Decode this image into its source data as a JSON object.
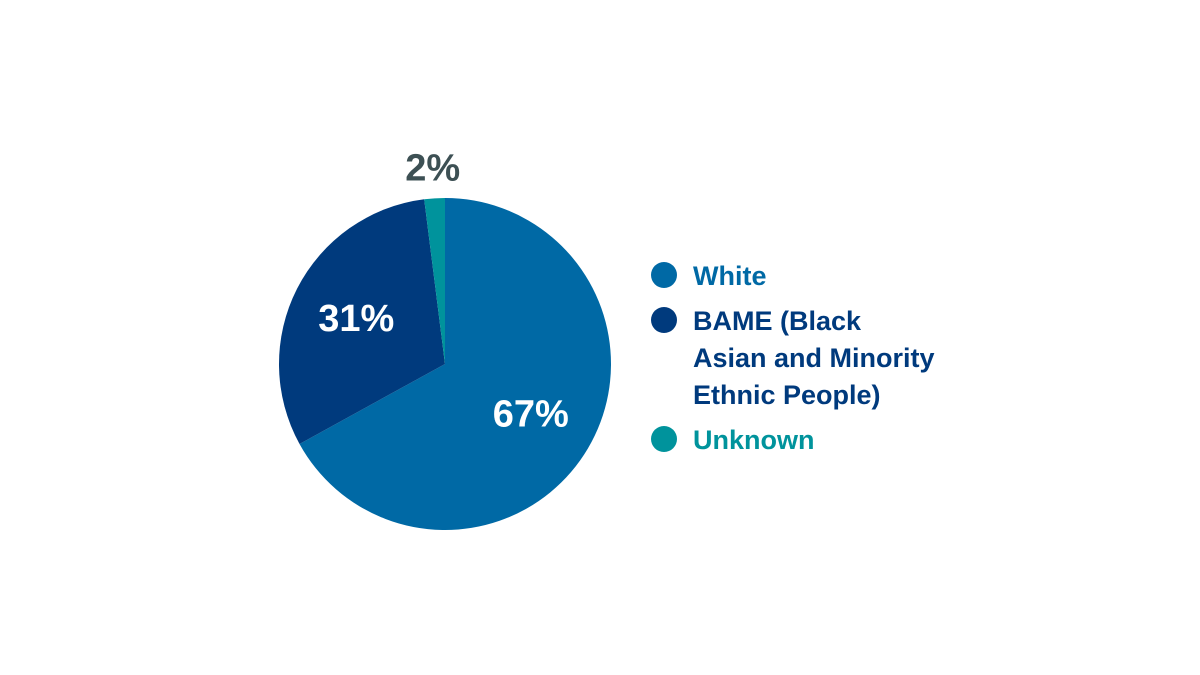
{
  "chart_data": {
    "type": "pie",
    "categories": [
      "White",
      "BAME (Black Asian and Minority Ethnic People)",
      "Unknown"
    ],
    "values": [
      67,
      31,
      2
    ],
    "value_labels": [
      "67%",
      "31%",
      "2%"
    ],
    "colors": [
      "#0069a5",
      "#003a7d",
      "#00939c"
    ],
    "label_colors": [
      "#ffffff",
      "#ffffff",
      "#3d5054"
    ],
    "start_angle_deg": 0,
    "direction": "clockwise",
    "legend_position": "right"
  },
  "legend": {
    "items": [
      {
        "label": "White",
        "color": "#0069a5",
        "icon": "circle"
      },
      {
        "label": "BAME (Black\nAsian and Minority\nEthnic People)",
        "color": "#003a7d",
        "icon": "circle"
      },
      {
        "label": "Unknown",
        "color": "#00939c",
        "icon": "circle"
      }
    ]
  }
}
